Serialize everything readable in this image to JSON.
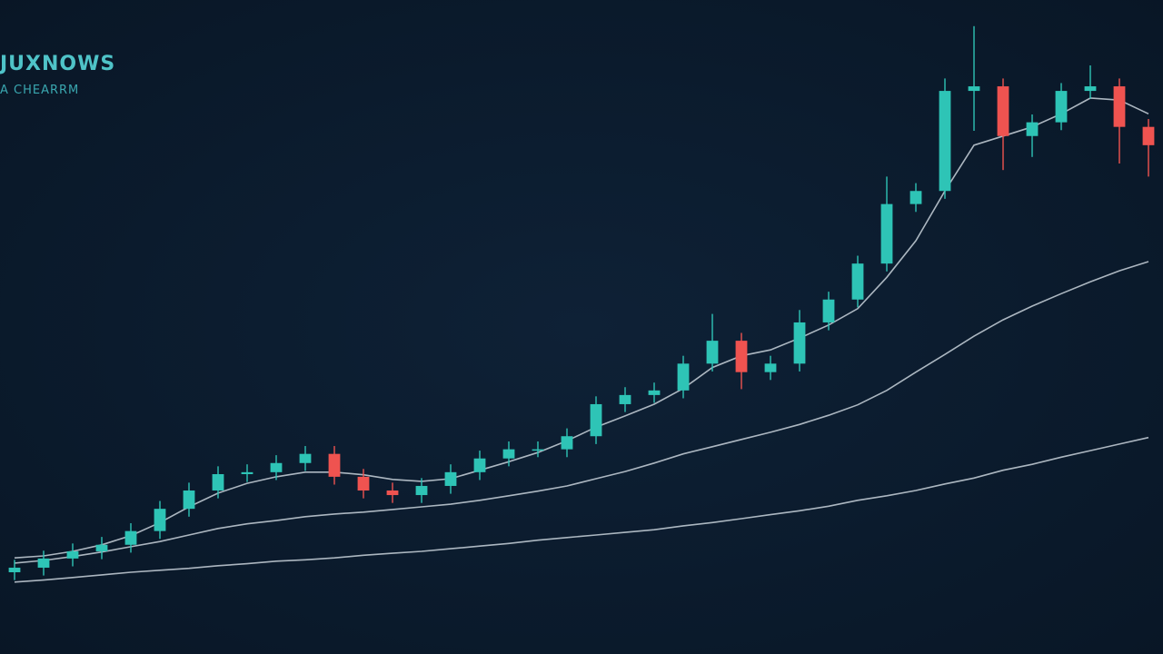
{
  "chart_data": {
    "type": "candlestick",
    "title": "JUXNOWS",
    "subtitle": "A CHEARRM",
    "up_color": "#2ec4b6",
    "down_color": "#ef5350",
    "ylim": [
      0,
      100
    ],
    "open": [
      12.5,
      13.2,
      14.6,
      15.7,
      16.7,
      18.8,
      22.2,
      25.0,
      27.5,
      27.8,
      29.2,
      30.6,
      27.1,
      25.0,
      24.3,
      25.7,
      27.8,
      29.9,
      31.3,
      31.3,
      33.3,
      38.2,
      39.6,
      40.3,
      44.4,
      47.9,
      43.1,
      44.4,
      50.7,
      54.2,
      59.7,
      68.8,
      70.8,
      86.1,
      86.8,
      79.2,
      81.3,
      86.1,
      86.8,
      80.6
    ],
    "high": [
      14.4,
      15.8,
      16.9,
      17.9,
      20.0,
      23.4,
      26.2,
      28.7,
      29.0,
      30.4,
      31.8,
      31.8,
      28.3,
      26.2,
      26.9,
      29.0,
      31.1,
      32.5,
      32.5,
      34.5,
      39.4,
      40.8,
      41.5,
      45.6,
      52.0,
      49.1,
      45.6,
      52.6,
      55.4,
      60.9,
      73.0,
      72.0,
      88.0,
      96.0,
      88.0,
      82.5,
      87.3,
      90.0,
      88.0,
      81.8
    ],
    "low": [
      11.3,
      12.0,
      13.4,
      14.5,
      15.5,
      17.6,
      21.0,
      23.8,
      26.3,
      26.6,
      28.0,
      25.9,
      23.8,
      23.1,
      23.1,
      24.5,
      26.6,
      28.7,
      30.1,
      30.1,
      32.1,
      37.0,
      38.4,
      39.1,
      43.2,
      40.5,
      41.9,
      43.2,
      49.5,
      53.0,
      58.5,
      67.6,
      69.6,
      80.0,
      74.0,
      76.0,
      80.1,
      84.9,
      75.0,
      73.0
    ],
    "close": [
      13.2,
      14.6,
      15.7,
      16.7,
      18.8,
      22.2,
      25.0,
      27.5,
      27.8,
      29.2,
      30.6,
      27.1,
      25.0,
      24.3,
      25.7,
      27.8,
      29.9,
      31.3,
      31.3,
      33.3,
      38.2,
      39.6,
      40.3,
      44.4,
      47.9,
      43.1,
      44.4,
      50.7,
      54.2,
      59.7,
      68.8,
      70.8,
      86.1,
      86.8,
      79.2,
      81.3,
      86.1,
      86.8,
      80.6,
      77.8
    ],
    "series": [
      {
        "color": "#c9d2da",
        "values": [
          14.7,
          15.0,
          15.7,
          16.7,
          18.1,
          20.1,
          22.5,
          24.6,
          26.1,
          27.1,
          27.8,
          27.8,
          27.4,
          26.7,
          26.4,
          26.8,
          28.1,
          29.4,
          30.8,
          32.6,
          34.7,
          36.4,
          38.2,
          40.6,
          43.8,
          45.6,
          46.5,
          48.3,
          50.3,
          52.8,
          57.6,
          63.2,
          70.8,
          77.8,
          79.2,
          80.6,
          82.6,
          85.0,
          84.7,
          82.6
        ]
      },
      {
        "color": "#c9d2da",
        "values": [
          13.9,
          14.3,
          14.9,
          15.6,
          16.4,
          17.2,
          18.2,
          19.2,
          19.9,
          20.4,
          21.0,
          21.4,
          21.7,
          22.1,
          22.5,
          22.9,
          23.5,
          24.2,
          24.9,
          25.7,
          26.8,
          27.9,
          29.2,
          30.6,
          31.7,
          32.8,
          33.9,
          35.1,
          36.5,
          38.1,
          40.3,
          43.1,
          45.8,
          48.6,
          51.1,
          53.2,
          55.1,
          56.9,
          58.6,
          60.0
        ]
      },
      {
        "color": "#c9d2da",
        "values": [
          11.0,
          11.3,
          11.7,
          12.1,
          12.5,
          12.8,
          13.1,
          13.5,
          13.8,
          14.2,
          14.4,
          14.7,
          15.1,
          15.4,
          15.7,
          16.1,
          16.5,
          16.9,
          17.4,
          17.8,
          18.2,
          18.6,
          19.0,
          19.6,
          20.1,
          20.7,
          21.3,
          21.9,
          22.6,
          23.5,
          24.2,
          25.0,
          26.0,
          26.9,
          28.1,
          29.0,
          30.1,
          31.1,
          32.1,
          33.1
        ]
      }
    ]
  }
}
